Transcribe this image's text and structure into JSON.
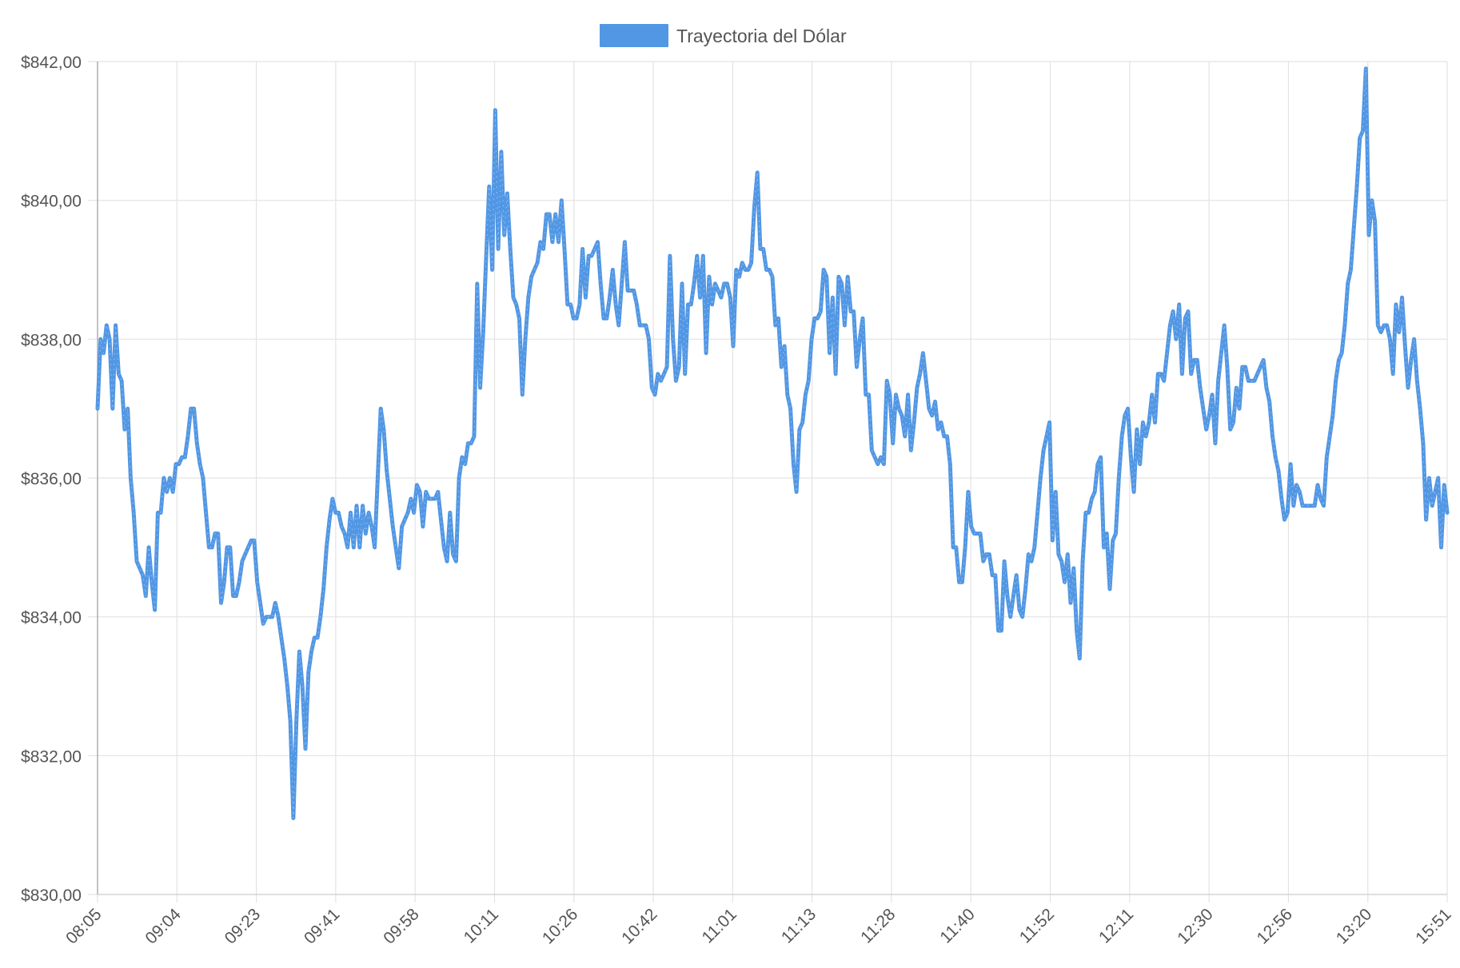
{
  "chart_data": {
    "type": "line",
    "title": "",
    "xlabel": "",
    "ylabel": "",
    "legend": {
      "position": "top-center"
    },
    "grid": true,
    "ylim": [
      830,
      842
    ],
    "y_ticks": [
      "$842,00",
      "$840,00",
      "$838,00",
      "$836,00",
      "$834,00",
      "$832,00",
      "$830,00"
    ],
    "y_tick_values": [
      842,
      840,
      838,
      836,
      834,
      832,
      830
    ],
    "x_ticks": [
      "08:05",
      "09:04",
      "09:23",
      "09:41",
      "09:58",
      "10:11",
      "10:26",
      "10:42",
      "11:01",
      "11:13",
      "11:28",
      "11:40",
      "11:52",
      "12:11",
      "12:30",
      "12:56",
      "13:20",
      "15:51"
    ],
    "series": [
      {
        "name": "Trayectoria del Dólar",
        "color": "#5297e4",
        "values": [
          837.0,
          838.0,
          837.8,
          838.2,
          838.0,
          837.0,
          838.2,
          837.5,
          837.4,
          836.7,
          837.0,
          836.0,
          835.5,
          834.8,
          834.7,
          834.6,
          834.3,
          835.0,
          834.5,
          834.1,
          835.5,
          835.5,
          836.0,
          835.8,
          836.0,
          835.8,
          836.2,
          836.2,
          836.3,
          836.3,
          836.6,
          837.0,
          837.0,
          836.5,
          836.2,
          836.0,
          835.5,
          835.0,
          835.0,
          835.2,
          835.2,
          834.2,
          834.5,
          835.0,
          835.0,
          834.3,
          834.3,
          834.5,
          834.8,
          834.9,
          835.0,
          835.1,
          835.1,
          834.5,
          834.2,
          833.9,
          834.0,
          834.0,
          834.0,
          834.2,
          834.0,
          833.7,
          833.4,
          833.0,
          832.5,
          831.1,
          832.5,
          833.5,
          833.0,
          832.1,
          833.2,
          833.5,
          833.7,
          833.7,
          834.0,
          834.4,
          835.0,
          835.4,
          835.7,
          835.5,
          835.5,
          835.3,
          835.2,
          835.0,
          835.5,
          835.0,
          835.6,
          835.0,
          835.6,
          835.2,
          835.5,
          835.3,
          835.0,
          836.0,
          837.0,
          836.7,
          836.1,
          835.7,
          835.3,
          835.0,
          834.7,
          835.3,
          835.4,
          835.5,
          835.7,
          835.5,
          835.9,
          835.8,
          835.3,
          835.8,
          835.7,
          835.7,
          835.7,
          835.8,
          835.4,
          835.0,
          834.8,
          835.5,
          834.9,
          834.8,
          836.0,
          836.3,
          836.2,
          836.5,
          836.5,
          836.6,
          838.8,
          837.3,
          838.1,
          839.2,
          840.2,
          839.0,
          841.3,
          839.3,
          840.7,
          839.5,
          840.1,
          839.3,
          838.6,
          838.5,
          838.3,
          837.2,
          838.0,
          838.6,
          838.9,
          839.0,
          839.1,
          839.4,
          839.3,
          839.8,
          839.8,
          839.4,
          839.8,
          839.4,
          840.0,
          839.3,
          838.5,
          838.5,
          838.3,
          838.3,
          838.5,
          839.3,
          838.6,
          839.2,
          839.2,
          839.3,
          839.4,
          838.8,
          838.3,
          838.3,
          838.6,
          839.0,
          838.5,
          838.2,
          838.8,
          839.4,
          838.7,
          838.7,
          838.7,
          838.5,
          838.2,
          838.2,
          838.2,
          838.0,
          837.3,
          837.2,
          837.5,
          837.4,
          837.5,
          837.6,
          839.2,
          838.0,
          837.4,
          837.6,
          838.8,
          837.5,
          838.5,
          838.5,
          838.8,
          839.2,
          838.6,
          839.2,
          837.8,
          838.9,
          838.5,
          838.8,
          838.7,
          838.6,
          838.8,
          838.8,
          838.6,
          837.9,
          839.0,
          838.9,
          839.1,
          839.0,
          839.0,
          839.1,
          839.9,
          840.4,
          839.3,
          839.3,
          839.0,
          839.0,
          838.9,
          838.2,
          838.3,
          837.6,
          837.9,
          837.2,
          837.0,
          836.2,
          835.8,
          836.7,
          836.8,
          837.2,
          837.4,
          838.0,
          838.3,
          838.3,
          838.4,
          839.0,
          838.9,
          837.8,
          838.6,
          837.5,
          838.9,
          838.8,
          838.2,
          838.9,
          838.4,
          838.4,
          837.6,
          838.0,
          838.3,
          837.2,
          837.2,
          836.4,
          836.3,
          836.2,
          836.3,
          836.2,
          837.4,
          837.2,
          836.5,
          837.2,
          837.0,
          836.9,
          836.6,
          837.2,
          836.4,
          836.8,
          837.3,
          837.5,
          837.8,
          837.4,
          837.0,
          836.9,
          837.1,
          836.7,
          836.8,
          836.6,
          836.6,
          836.2,
          835.0,
          835.0,
          834.5,
          834.5,
          835.0,
          835.8,
          835.3,
          835.2,
          835.2,
          835.2,
          834.8,
          834.9,
          834.9,
          834.6,
          834.6,
          833.8,
          833.8,
          834.8,
          834.3,
          834.0,
          834.3,
          834.6,
          834.1,
          834.0,
          834.4,
          834.9,
          834.8,
          835.0,
          835.5,
          836.0,
          836.4,
          836.6,
          836.8,
          835.1,
          835.8,
          834.9,
          834.8,
          834.5,
          834.9,
          834.2,
          834.7,
          833.8,
          833.4,
          834.8,
          835.5,
          835.5,
          835.7,
          835.8,
          836.2,
          836.3,
          835.0,
          835.2,
          834.4,
          835.1,
          835.2,
          836.0,
          836.6,
          836.9,
          837.0,
          836.3,
          835.8,
          836.7,
          836.2,
          836.8,
          836.6,
          836.8,
          837.2,
          836.8,
          837.5,
          837.5,
          837.4,
          837.8,
          838.2,
          838.4,
          838.0,
          838.5,
          837.5,
          838.3,
          838.4,
          837.5,
          837.7,
          837.7,
          837.3,
          837.0,
          836.7,
          836.9,
          837.2,
          836.5,
          837.4,
          837.8,
          838.2,
          837.6,
          836.7,
          836.8,
          837.3,
          837.0,
          837.6,
          837.6,
          837.4,
          837.4,
          837.4,
          837.5,
          837.6,
          837.7,
          837.3,
          837.1,
          836.6,
          836.3,
          836.1,
          835.7,
          835.4,
          835.5,
          836.2,
          835.6,
          835.9,
          835.8,
          835.6,
          835.6,
          835.6,
          835.6,
          835.6,
          835.9,
          835.7,
          835.6,
          836.3,
          836.6,
          836.9,
          837.4,
          837.7,
          837.8,
          838.2,
          838.8,
          839.0,
          839.6,
          840.2,
          840.9,
          841.0,
          841.9,
          839.5,
          840.0,
          839.7,
          838.2,
          838.1,
          838.2,
          838.2,
          838.0,
          837.5,
          838.5,
          838.1,
          838.6,
          837.9,
          837.3,
          837.7,
          838.0,
          837.4,
          837.0,
          836.5,
          835.4,
          836.0,
          835.6,
          835.8,
          836.0,
          835.0,
          835.9,
          835.5
        ]
      }
    ]
  }
}
